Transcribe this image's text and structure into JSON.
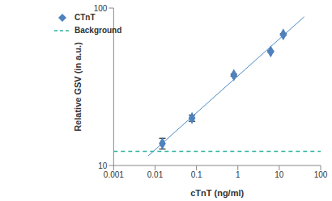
{
  "chart_data": {
    "type": "scatter",
    "log": true,
    "x_label": "cTnT (ng/ml)",
    "y_label": "Relative GSV (in a.u.)",
    "xlim": [
      0.001,
      100
    ],
    "xticks": [
      0.001,
      0.01,
      0.1,
      1,
      10,
      100
    ],
    "ylim": [
      10,
      100
    ],
    "yticks": [
      10,
      100
    ],
    "grid": false,
    "legend": "upper left",
    "series": [
      {
        "name": "CTnT",
        "type": "scatter",
        "marker": "diamond",
        "color": "#4f81bd",
        "x": [
          0.015,
          0.078,
          0.8,
          6.2,
          12.5
        ],
        "values": [
          13.8,
          20,
          37.5,
          53,
          68
        ],
        "error": [
          1.1,
          0.9,
          0.6,
          0.6,
          0.8
        ]
      },
      {
        "name": "Background",
        "type": "line",
        "line_style": "dashed",
        "color": "#2fb3a0",
        "x": [
          0.001,
          100
        ],
        "values": [
          12.3,
          12.3
        ]
      }
    ],
    "trendline": {
      "x": [
        0.0068,
        40
      ],
      "values": [
        11.5,
        88
      ],
      "color": "#4a8ac4"
    }
  }
}
